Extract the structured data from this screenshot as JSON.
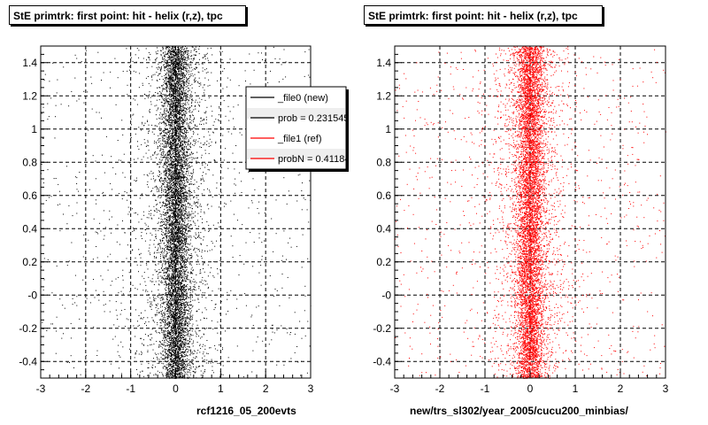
{
  "footer_stamp": " ",
  "chart_data": [
    {
      "type": "scatter",
      "title": "StE primtrk: first point: hit - helix (r,z), tpc",
      "xlabel": "rcf1216_05_200evts",
      "ylabel": "",
      "xlim": [
        -3,
        3
      ],
      "ylim": [
        -0.5,
        1.5
      ],
      "x_ticks": [
        "-3",
        "-2",
        "-1",
        "0",
        "1",
        "2",
        "3"
      ],
      "y_ticks": [
        "-0.4",
        "-0.2",
        "-0",
        "0.2",
        "0.4",
        "0.6",
        "0.8",
        "1",
        "1.2",
        "1.4"
      ],
      "grid": true,
      "marker_color": "#000000",
      "distribution": {
        "x_center": 0.0,
        "x_core_sigma": 0.15,
        "y_range": [
          -0.5,
          1.5
        ]
      },
      "legend": {
        "placement": "top-right",
        "entries": [
          {
            "label": "_file0 (new)",
            "color": "#000000"
          },
          {
            "label": "prob = 0.231545",
            "color": "#000000"
          },
          {
            "label": "_file1 (ref)",
            "color": "#ff0000"
          },
          {
            "label": "probN = 0.411844",
            "color": "#ff0000"
          }
        ]
      }
    },
    {
      "type": "scatter",
      "title": "StE primtrk: first point: hit - helix (r,z), tpc",
      "xlabel": "new/trs_sl302/year_2005/cucu200_minbias/",
      "ylabel": "",
      "xlim": [
        -3,
        3
      ],
      "ylim": [
        -0.5,
        1.5
      ],
      "x_ticks": [
        "-3",
        "-2",
        "-1",
        "0",
        "1",
        "2",
        "3"
      ],
      "y_ticks": [
        "-0.4",
        "-0.2",
        "-0",
        "0.2",
        "0.4",
        "0.6",
        "0.8",
        "1",
        "1.2",
        "1.4"
      ],
      "grid": true,
      "marker_color": "#ff0000",
      "distribution": {
        "x_center": 0.0,
        "x_core_sigma": 0.15,
        "y_range": [
          -0.5,
          1.5
        ]
      }
    }
  ]
}
